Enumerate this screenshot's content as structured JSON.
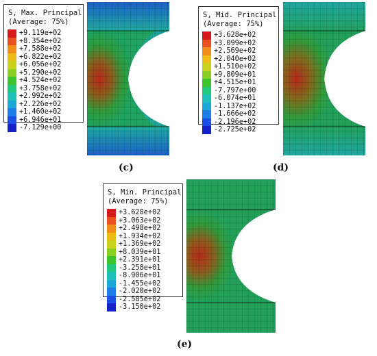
{
  "panels": [
    {
      "id": "c",
      "caption": "(c)",
      "legend": {
        "title_line1": "S, Max. Principal",
        "title_line2": "(Average: 75%)",
        "values": [
          "+9.119e+02",
          "+8.354e+02",
          "+7.588e+02",
          "+6.822e+02",
          "+6.056e+02",
          "+5.290e+02",
          "+4.524e+02",
          "+3.758e+02",
          "+2.992e+02",
          "+2.226e+02",
          "+1.460e+02",
          "+6.946e+01",
          "-7.129e+00"
        ]
      }
    },
    {
      "id": "d",
      "caption": "(d)",
      "legend": {
        "title_line1": "S, Mid. Principal",
        "title_line2": "(Average: 75%)",
        "values": [
          "+3.628e+02",
          "+3.099e+02",
          "+2.569e+02",
          "+2.040e+02",
          "+1.510e+02",
          "+9.809e+01",
          "+4.515e+01",
          "-7.797e+00",
          "-6.074e+01",
          "-1.137e+02",
          "-1.666e+02",
          "-2.196e+02",
          "-2.725e+02"
        ]
      }
    },
    {
      "id": "e",
      "caption": "(e)",
      "legend": {
        "title_line1": "S, Min. Principal",
        "title_line2": "(Average: 75%)",
        "values": [
          "+3.628e+02",
          "+3.063e+02",
          "+2.498e+02",
          "+1.934e+02",
          "+1.369e+02",
          "+8.039e+01",
          "+2.391e+01",
          "-3.258e+01",
          "-8.906e+01",
          "-1.455e+02",
          "-2.020e+02",
          "-2.585e+02",
          "-3.150e+02"
        ]
      }
    }
  ],
  "colors": {
    "legend_swatches": [
      "#d7191c",
      "#e8501e",
      "#f08d1a",
      "#eebd15",
      "#c8d21c",
      "#8ad022",
      "#3cc42c",
      "#21c77b",
      "#1cc0b9",
      "#1ba7d8",
      "#1c7ee6",
      "#1a4fe6",
      "#1623c8"
    ],
    "plate_base": "#22a05a",
    "plate_hot": "#c4321c"
  }
}
